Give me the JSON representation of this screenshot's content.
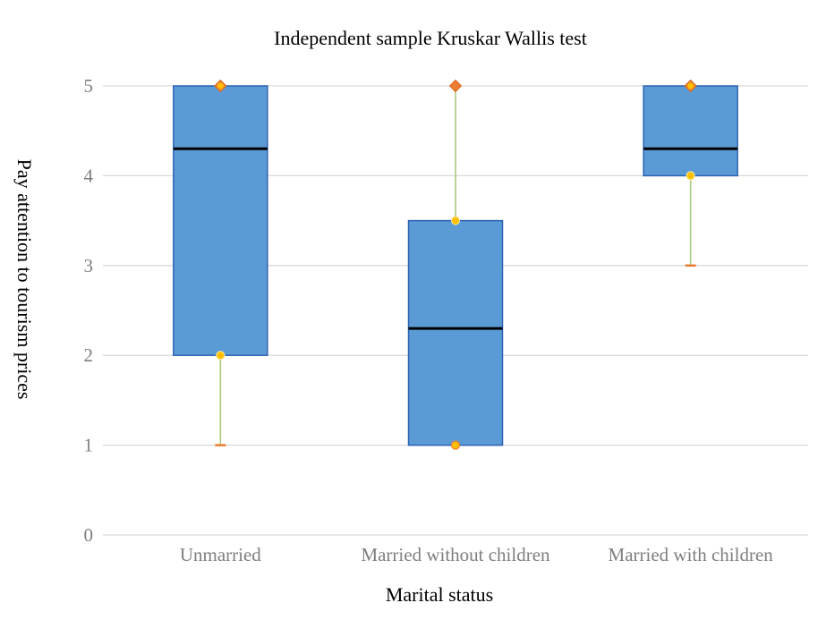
{
  "chart_data": {
    "type": "box",
    "title": "Independent sample Kruskar Wallis test",
    "xlabel": "Marital status",
    "ylabel": "Pay attention to tourism prices",
    "ylim": [
      0,
      5
    ],
    "yticks": [
      0,
      1,
      2,
      3,
      4,
      5
    ],
    "grid": true,
    "categories": [
      "Unmarried",
      "Married without children",
      "Married with children"
    ],
    "boxes": [
      {
        "category": "Unmarried",
        "min": 1,
        "q1": 2,
        "median": 4.3,
        "q3": 5,
        "max": 5
      },
      {
        "category": "Married without children",
        "min": 1,
        "q1": 1,
        "median": 2.3,
        "q3": 3.5,
        "max": 5
      },
      {
        "category": "Married with children",
        "min": 3,
        "q1": 4,
        "median": 4.3,
        "q3": 5,
        "max": 5
      }
    ],
    "colors": {
      "box_fill": "#5b9bd5",
      "box_stroke": "#2e62b4",
      "median": "#000000",
      "whisker": "#a9c97e",
      "max_marker": "#ed7d31",
      "quartile_marker": "#ffc000",
      "min_marker": "#ed7d31",
      "grid": "#d9d9d9"
    }
  }
}
